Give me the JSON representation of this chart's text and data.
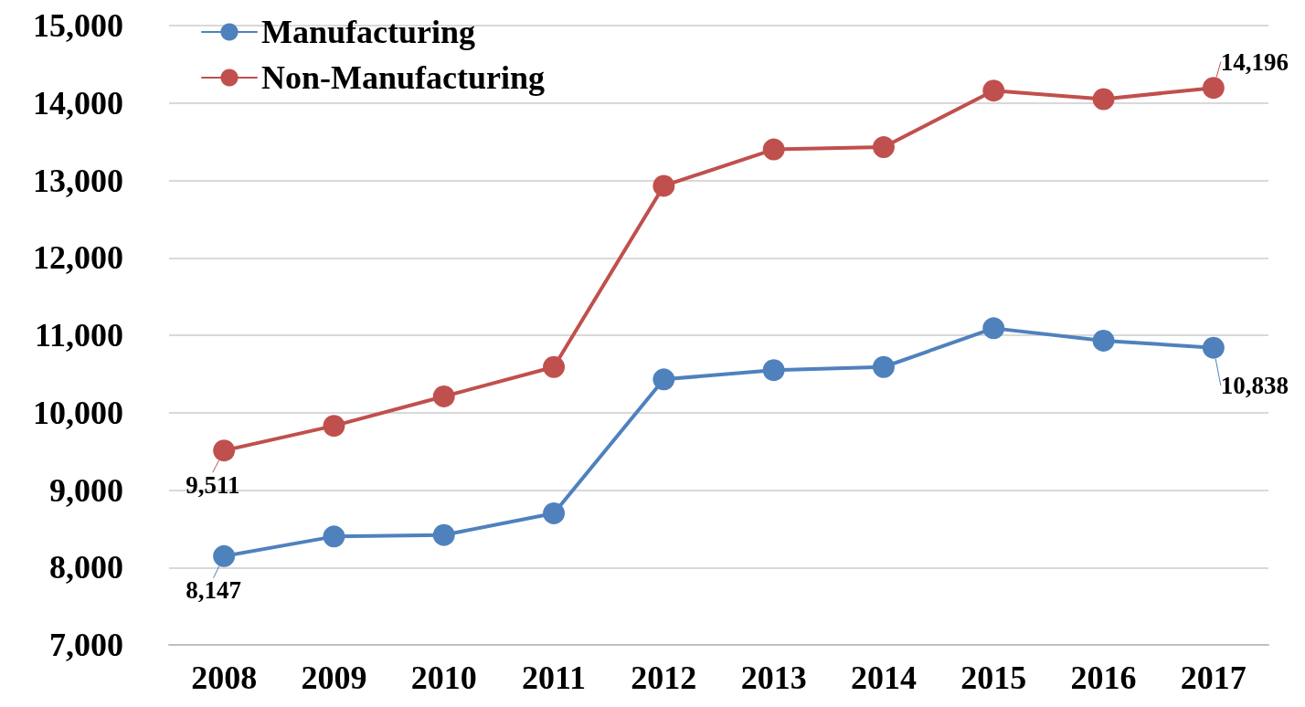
{
  "chart_data": {
    "type": "line",
    "categories": [
      "2008",
      "2009",
      "2010",
      "2011",
      "2012",
      "2013",
      "2014",
      "2015",
      "2016",
      "2017"
    ],
    "series": [
      {
        "name": "Manufacturing",
        "color": "#4f81bd",
        "values": [
          8147,
          8400,
          8420,
          8700,
          10430,
          10550,
          10590,
          11090,
          10930,
          10838
        ],
        "value_labels": [
          "8,147",
          null,
          null,
          null,
          null,
          null,
          null,
          null,
          null,
          "10,838"
        ]
      },
      {
        "name": "Non-Manufacturing",
        "color": "#c0504d",
        "values": [
          9511,
          9830,
          10210,
          10590,
          12930,
          13400,
          13430,
          14160,
          14050,
          14196
        ],
        "value_labels": [
          "9,511",
          null,
          null,
          null,
          null,
          null,
          null,
          null,
          null,
          "14,196"
        ]
      }
    ],
    "ylim": [
      7000,
      15000
    ],
    "yticks": [
      {
        "value": 7000,
        "label": "7,000"
      },
      {
        "value": 8000,
        "label": "8,000"
      },
      {
        "value": 9000,
        "label": "9,000"
      },
      {
        "value": 10000,
        "label": "10,000"
      },
      {
        "value": 11000,
        "label": "11,000"
      },
      {
        "value": 12000,
        "label": "12,000"
      },
      {
        "value": 13000,
        "label": "13,000"
      },
      {
        "value": 14000,
        "label": "14,000"
      },
      {
        "value": 15000,
        "label": "15,000"
      }
    ],
    "grid": "y",
    "legend": "top left",
    "marker": "circle",
    "line_style": "solid"
  }
}
